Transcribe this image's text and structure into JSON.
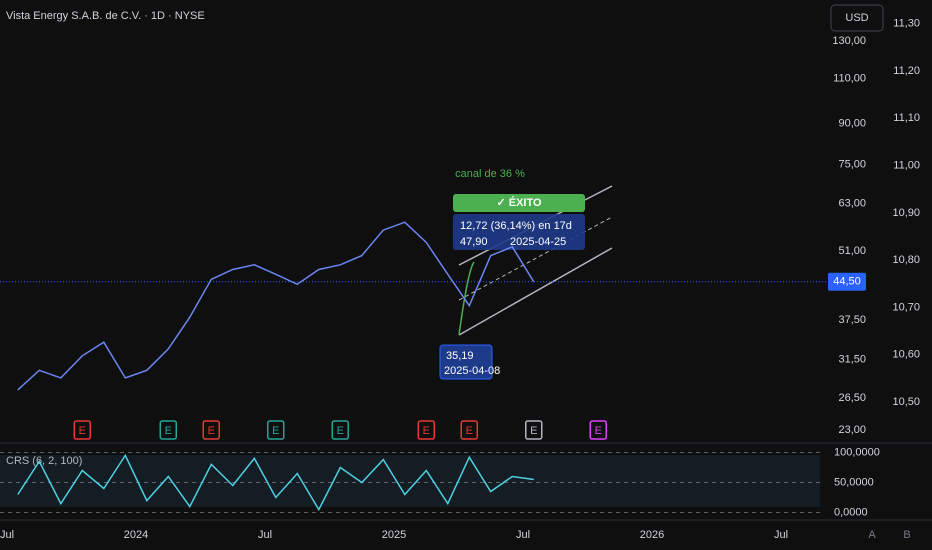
{
  "chart_data": [
    {
      "type": "line",
      "title": "Vista Energy S.A.B. de C.V. · 1D · NYSE",
      "currency": "USD",
      "x": [
        "2023-07",
        "2023-08",
        "2023-09",
        "2023-10",
        "2023-11",
        "2023-12",
        "2024-01",
        "2024-02",
        "2024-03",
        "2024-04",
        "2024-05",
        "2024-06",
        "2024-07",
        "2024-08",
        "2024-09",
        "2024-10",
        "2024-11",
        "2024-12",
        "2025-01",
        "2025-02",
        "2025-03",
        "2025-04",
        "2025-05",
        "2025-06",
        "2025-07"
      ],
      "series": [
        {
          "name": "Vista Energy",
          "color": "#6a86f0",
          "values": [
            27.5,
            30,
            29,
            32,
            34,
            29,
            30,
            33,
            38,
            45,
            47,
            48,
            46,
            44,
            47,
            48,
            50,
            56,
            58,
            53,
            46,
            40,
            50,
            52,
            44.5
          ]
        }
      ],
      "log_scale": true,
      "xlim": [
        "2023-07",
        "2026-09"
      ],
      "xticks": [
        {
          "value": "2023-07",
          "label": "Jul"
        },
        {
          "value": "2024-01",
          "label": "2024"
        },
        {
          "value": "2024-07",
          "label": "Jul"
        },
        {
          "value": "2025-01",
          "label": "2025"
        },
        {
          "value": "2025-07",
          "label": "Jul"
        },
        {
          "value": "2026-01",
          "label": "2026"
        },
        {
          "value": "2026-07",
          "label": "Jul"
        }
      ],
      "ylim": [
        22,
        156
      ],
      "yticks": [
        {
          "value": 23,
          "label": "23,00"
        },
        {
          "value": 26.5,
          "label": "26,50"
        },
        {
          "value": 31.5,
          "label": "31,50"
        },
        {
          "value": 37.5,
          "label": "37,50"
        },
        {
          "value": 51,
          "label": "51,00"
        },
        {
          "value": 63,
          "label": "63,00"
        },
        {
          "value": 75,
          "label": "75,00"
        },
        {
          "value": 90,
          "label": "90,00"
        },
        {
          "value": 110,
          "label": "110,00"
        },
        {
          "value": 130,
          "label": "130,00"
        }
      ],
      "y2lim": [
        10.42,
        11.35
      ],
      "y2ticks": [
        {
          "value": 10.5,
          "label": "10,50"
        },
        {
          "value": 10.6,
          "label": "10,60"
        },
        {
          "value": 10.7,
          "label": "10,70"
        },
        {
          "value": 10.8,
          "label": "10,80"
        },
        {
          "value": 10.9,
          "label": "10,90"
        },
        {
          "value": 11,
          "label": "11,00"
        },
        {
          "value": 11.1,
          "label": "11,10"
        },
        {
          "value": 11.2,
          "label": "11,20"
        },
        {
          "value": 11.3,
          "label": "11,30"
        }
      ],
      "last_price": {
        "value": 44.5,
        "label": "44,50"
      },
      "events": [
        {
          "x": "2023-10",
          "label": "E",
          "color": "#e53935"
        },
        {
          "x": "2024-02",
          "label": "E",
          "color": "#26a69a"
        },
        {
          "x": "2024-04",
          "label": "E",
          "color": "#e53935"
        },
        {
          "x": "2024-07",
          "label": "E",
          "color": "#26a69a"
        },
        {
          "x": "2024-10",
          "label": "E",
          "color": "#26a69a"
        },
        {
          "x": "2025-02",
          "label": "E",
          "color": "#e53935"
        },
        {
          "x": "2025-04",
          "label": "E",
          "color": "#e53935"
        },
        {
          "x": "2025-07",
          "label": "E",
          "color": "#b2b5be"
        },
        {
          "x": "2025-10",
          "label": "E",
          "color": "#e040fb"
        }
      ],
      "annotations": {
        "channel": "canal de 36 %",
        "status": "✓ ÉXITO",
        "measure": "12,72 (36,14%) en 17d",
        "high_price": "47,90",
        "high_date": "2025-04-25",
        "low_price": "35,19",
        "low_date": "2025-04-08"
      }
    },
    {
      "type": "line",
      "title": "CRS (6, 2, 100)",
      "x": [
        "2023-07",
        "2023-08",
        "2023-09",
        "2023-10",
        "2023-11",
        "2023-12",
        "2024-01",
        "2024-02",
        "2024-03",
        "2024-04",
        "2024-05",
        "2024-06",
        "2024-07",
        "2024-08",
        "2024-09",
        "2024-10",
        "2024-11",
        "2024-12",
        "2025-01",
        "2025-02",
        "2025-03",
        "2025-04",
        "2025-05",
        "2025-06",
        "2025-07"
      ],
      "series": [
        {
          "name": "CRS",
          "color": "#4dd0e1",
          "values": [
            30,
            85,
            15,
            70,
            40,
            95,
            20,
            60,
            10,
            80,
            45,
            90,
            25,
            65,
            5,
            75,
            50,
            88,
            30,
            70,
            15,
            92,
            35,
            60,
            55
          ]
        }
      ],
      "ylim": [
        -4,
        104
      ],
      "yticks": [
        {
          "value": 100,
          "label": "100,0000"
        },
        {
          "value": 50,
          "label": "50,0000"
        },
        {
          "value": 0,
          "label": "0,0000"
        }
      ]
    }
  ],
  "footer": {
    "a": "A",
    "b": "B"
  }
}
